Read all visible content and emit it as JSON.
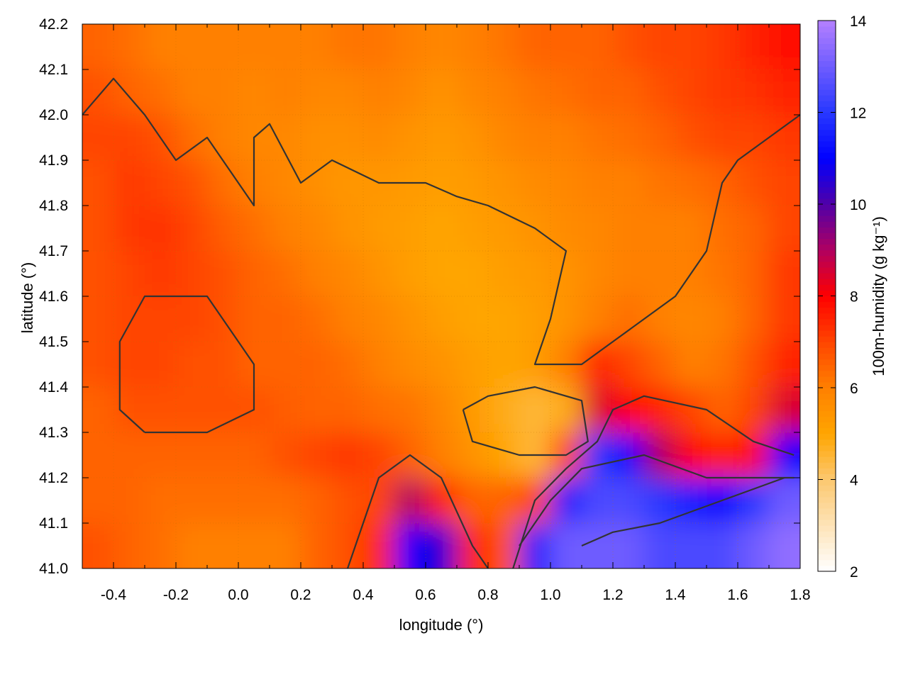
{
  "chart_data": {
    "type": "heatmap",
    "title": "",
    "xlabel": "longitude (°)",
    "ylabel": "latitude (°)",
    "colorbar_label": "100m-humidity (g kg⁻¹)",
    "xlim": [
      -0.5,
      1.8
    ],
    "ylim": [
      41.0,
      42.2
    ],
    "clim": [
      2,
      14
    ],
    "grid": true,
    "xticks": [
      "-0.4",
      "-0.2",
      "0.0",
      "0.2",
      "0.4",
      "0.6",
      "0.8",
      "1.0",
      "1.2",
      "1.4",
      "1.6",
      "1.8"
    ],
    "yticks": [
      "41.0",
      "41.1",
      "41.2",
      "41.3",
      "41.4",
      "41.5",
      "41.6",
      "41.7",
      "41.8",
      "41.9",
      "42.0",
      "42.1",
      "42.2"
    ],
    "cticks": [
      "2",
      "4",
      "6",
      "8",
      "10",
      "12",
      "14"
    ],
    "palette": [
      [
        2,
        "#ffffff"
      ],
      [
        4,
        "#fcc870"
      ],
      [
        5,
        "#ffa500"
      ],
      [
        6,
        "#ff8000"
      ],
      [
        7,
        "#ff4500"
      ],
      [
        8,
        "#ff0000"
      ],
      [
        9,
        "#b00060"
      ],
      [
        10,
        "#5000a8"
      ],
      [
        11,
        "#0000ff"
      ],
      [
        12,
        "#2838ff"
      ],
      [
        14,
        "#b480ff"
      ]
    ],
    "grid_lon": [
      -0.45,
      -0.35,
      -0.25,
      -0.15,
      -0.05,
      0.05,
      0.15,
      0.25,
      0.35,
      0.45,
      0.55,
      0.65,
      0.75,
      0.85,
      0.95,
      1.05,
      1.15,
      1.25,
      1.35,
      1.45,
      1.55,
      1.65,
      1.75
    ],
    "grid_lat": [
      42.15,
      42.05,
      41.95,
      41.85,
      41.75,
      41.65,
      41.55,
      41.45,
      41.35,
      41.25,
      41.15,
      41.05
    ],
    "values": [
      [
        6.5,
        6.3,
        6.0,
        6.0,
        6.0,
        6.0,
        6.0,
        6.0,
        6.2,
        6.2,
        6.0,
        5.8,
        6.0,
        6.2,
        6.5,
        6.5,
        6.5,
        6.8,
        7.0,
        7.0,
        7.2,
        7.5,
        7.8
      ],
      [
        6.8,
        6.5,
        6.3,
        6.0,
        6.0,
        5.8,
        6.0,
        5.8,
        5.8,
        6.0,
        5.8,
        5.5,
        5.8,
        6.0,
        6.2,
        6.3,
        6.5,
        6.5,
        6.8,
        7.0,
        7.2,
        7.3,
        7.5
      ],
      [
        7.0,
        7.0,
        6.8,
        6.3,
        6.0,
        5.8,
        5.8,
        5.6,
        5.6,
        5.7,
        5.5,
        5.3,
        5.5,
        5.8,
        6.0,
        6.0,
        6.2,
        6.3,
        6.5,
        6.8,
        7.0,
        7.0,
        7.2
      ],
      [
        6.8,
        7.2,
        7.0,
        6.8,
        6.3,
        6.0,
        5.8,
        5.6,
        5.4,
        5.4,
        5.3,
        5.2,
        5.3,
        5.5,
        5.7,
        5.8,
        6.0,
        6.0,
        6.2,
        6.3,
        6.5,
        6.8,
        7.0
      ],
      [
        6.8,
        7.2,
        7.3,
        7.0,
        6.6,
        6.3,
        6.0,
        5.8,
        5.5,
        5.3,
        5.2,
        5.0,
        5.2,
        5.3,
        5.5,
        5.7,
        5.8,
        6.0,
        6.0,
        6.0,
        6.3,
        6.5,
        7.0
      ],
      [
        6.8,
        7.0,
        7.2,
        7.0,
        6.8,
        6.5,
        6.3,
        6.0,
        5.8,
        5.5,
        5.2,
        5.0,
        5.0,
        5.2,
        5.3,
        5.5,
        5.8,
        6.0,
        6.0,
        6.0,
        6.2,
        6.5,
        7.2
      ],
      [
        6.8,
        7.0,
        7.0,
        7.0,
        6.8,
        6.5,
        6.5,
        6.3,
        6.0,
        5.8,
        5.5,
        5.2,
        5.0,
        5.0,
        5.2,
        5.5,
        6.0,
        6.3,
        6.0,
        5.8,
        6.0,
        6.5,
        7.2
      ],
      [
        6.8,
        7.0,
        7.0,
        6.8,
        6.8,
        6.5,
        6.5,
        6.5,
        6.3,
        6.0,
        5.7,
        5.5,
        5.2,
        5.0,
        5.2,
        6.0,
        7.5,
        7.0,
        6.5,
        6.0,
        6.2,
        6.8,
        7.5
      ],
      [
        6.5,
        6.8,
        6.8,
        6.8,
        6.8,
        6.8,
        6.6,
        6.5,
        6.5,
        6.3,
        6.2,
        5.8,
        5.3,
        4.8,
        4.5,
        4.8,
        8.5,
        8.0,
        7.5,
        7.0,
        6.5,
        7.0,
        8.5
      ],
      [
        6.5,
        6.5,
        6.5,
        6.5,
        6.5,
        6.5,
        6.8,
        7.0,
        7.2,
        7.0,
        6.5,
        6.0,
        5.5,
        5.0,
        4.5,
        7.0,
        12.0,
        11.0,
        9.0,
        8.0,
        7.5,
        8.0,
        11.0
      ],
      [
        6.5,
        6.5,
        6.3,
        6.3,
        6.3,
        6.3,
        6.3,
        6.5,
        6.8,
        7.0,
        9.0,
        7.5,
        6.5,
        6.5,
        7.0,
        11.5,
        12.5,
        12.5,
        12.0,
        11.5,
        11.0,
        12.0,
        13.0
      ],
      [
        6.8,
        6.5,
        6.3,
        6.0,
        6.0,
        6.0,
        6.0,
        6.5,
        6.8,
        7.5,
        11.0,
        10.5,
        7.5,
        6.8,
        11.5,
        13.0,
        13.0,
        13.0,
        12.5,
        12.5,
        12.5,
        13.0,
        13.5
      ]
    ],
    "contours": [
      [
        [
          0.72,
          41.35
        ],
        [
          0.8,
          41.38
        ],
        [
          0.95,
          41.4
        ],
        [
          1.1,
          41.37
        ],
        [
          1.12,
          41.28
        ],
        [
          1.05,
          41.25
        ],
        [
          0.9,
          41.25
        ],
        [
          0.75,
          41.28
        ],
        [
          0.72,
          41.35
        ]
      ],
      [
        [
          -0.3,
          41.3
        ],
        [
          -0.1,
          41.3
        ],
        [
          0.05,
          41.35
        ],
        [
          0.05,
          41.45
        ],
        [
          -0.05,
          41.55
        ],
        [
          -0.1,
          41.6
        ],
        [
          -0.3,
          41.6
        ],
        [
          -0.38,
          41.5
        ],
        [
          -0.38,
          41.35
        ],
        [
          -0.3,
          41.3
        ]
      ],
      [
        [
          0.35,
          41.0
        ],
        [
          0.45,
          41.2
        ],
        [
          0.55,
          41.25
        ],
        [
          0.65,
          41.2
        ],
        [
          0.75,
          41.05
        ],
        [
          0.8,
          41.0
        ]
      ],
      [
        [
          0.88,
          41.0
        ],
        [
          0.95,
          41.15
        ],
        [
          1.05,
          41.22
        ],
        [
          1.15,
          41.28
        ],
        [
          1.2,
          41.35
        ],
        [
          1.3,
          41.38
        ],
        [
          1.5,
          41.35
        ],
        [
          1.65,
          41.28
        ],
        [
          1.78,
          41.25
        ]
      ],
      [
        [
          0.9,
          41.05
        ],
        [
          1.0,
          41.15
        ],
        [
          1.1,
          41.22
        ],
        [
          1.3,
          41.25
        ],
        [
          1.5,
          41.2
        ],
        [
          1.78,
          41.2
        ]
      ],
      [
        [
          1.1,
          41.05
        ],
        [
          1.2,
          41.08
        ],
        [
          1.35,
          41.1
        ],
        [
          1.55,
          41.15
        ],
        [
          1.75,
          41.2
        ]
      ],
      [
        [
          -0.5,
          42.0
        ],
        [
          -0.4,
          42.08
        ],
        [
          -0.3,
          42.0
        ],
        [
          -0.2,
          41.9
        ],
        [
          -0.1,
          41.95
        ],
        [
          0.0,
          41.85
        ],
        [
          0.05,
          41.8
        ],
        [
          0.05,
          41.95
        ],
        [
          0.1,
          41.98
        ],
        [
          0.2,
          41.85
        ],
        [
          0.3,
          41.9
        ],
        [
          0.45,
          41.85
        ],
        [
          0.6,
          41.85
        ],
        [
          0.7,
          41.82
        ],
        [
          0.8,
          41.8
        ],
        [
          0.95,
          41.75
        ],
        [
          1.05,
          41.7
        ],
        [
          1.0,
          41.55
        ],
        [
          0.95,
          41.45
        ],
        [
          1.1,
          41.45
        ],
        [
          1.2,
          41.5
        ],
        [
          1.3,
          41.55
        ],
        [
          1.4,
          41.6
        ],
        [
          1.5,
          41.7
        ],
        [
          1.55,
          41.85
        ],
        [
          1.6,
          41.9
        ],
        [
          1.7,
          41.95
        ],
        [
          1.8,
          42.0
        ]
      ]
    ]
  }
}
